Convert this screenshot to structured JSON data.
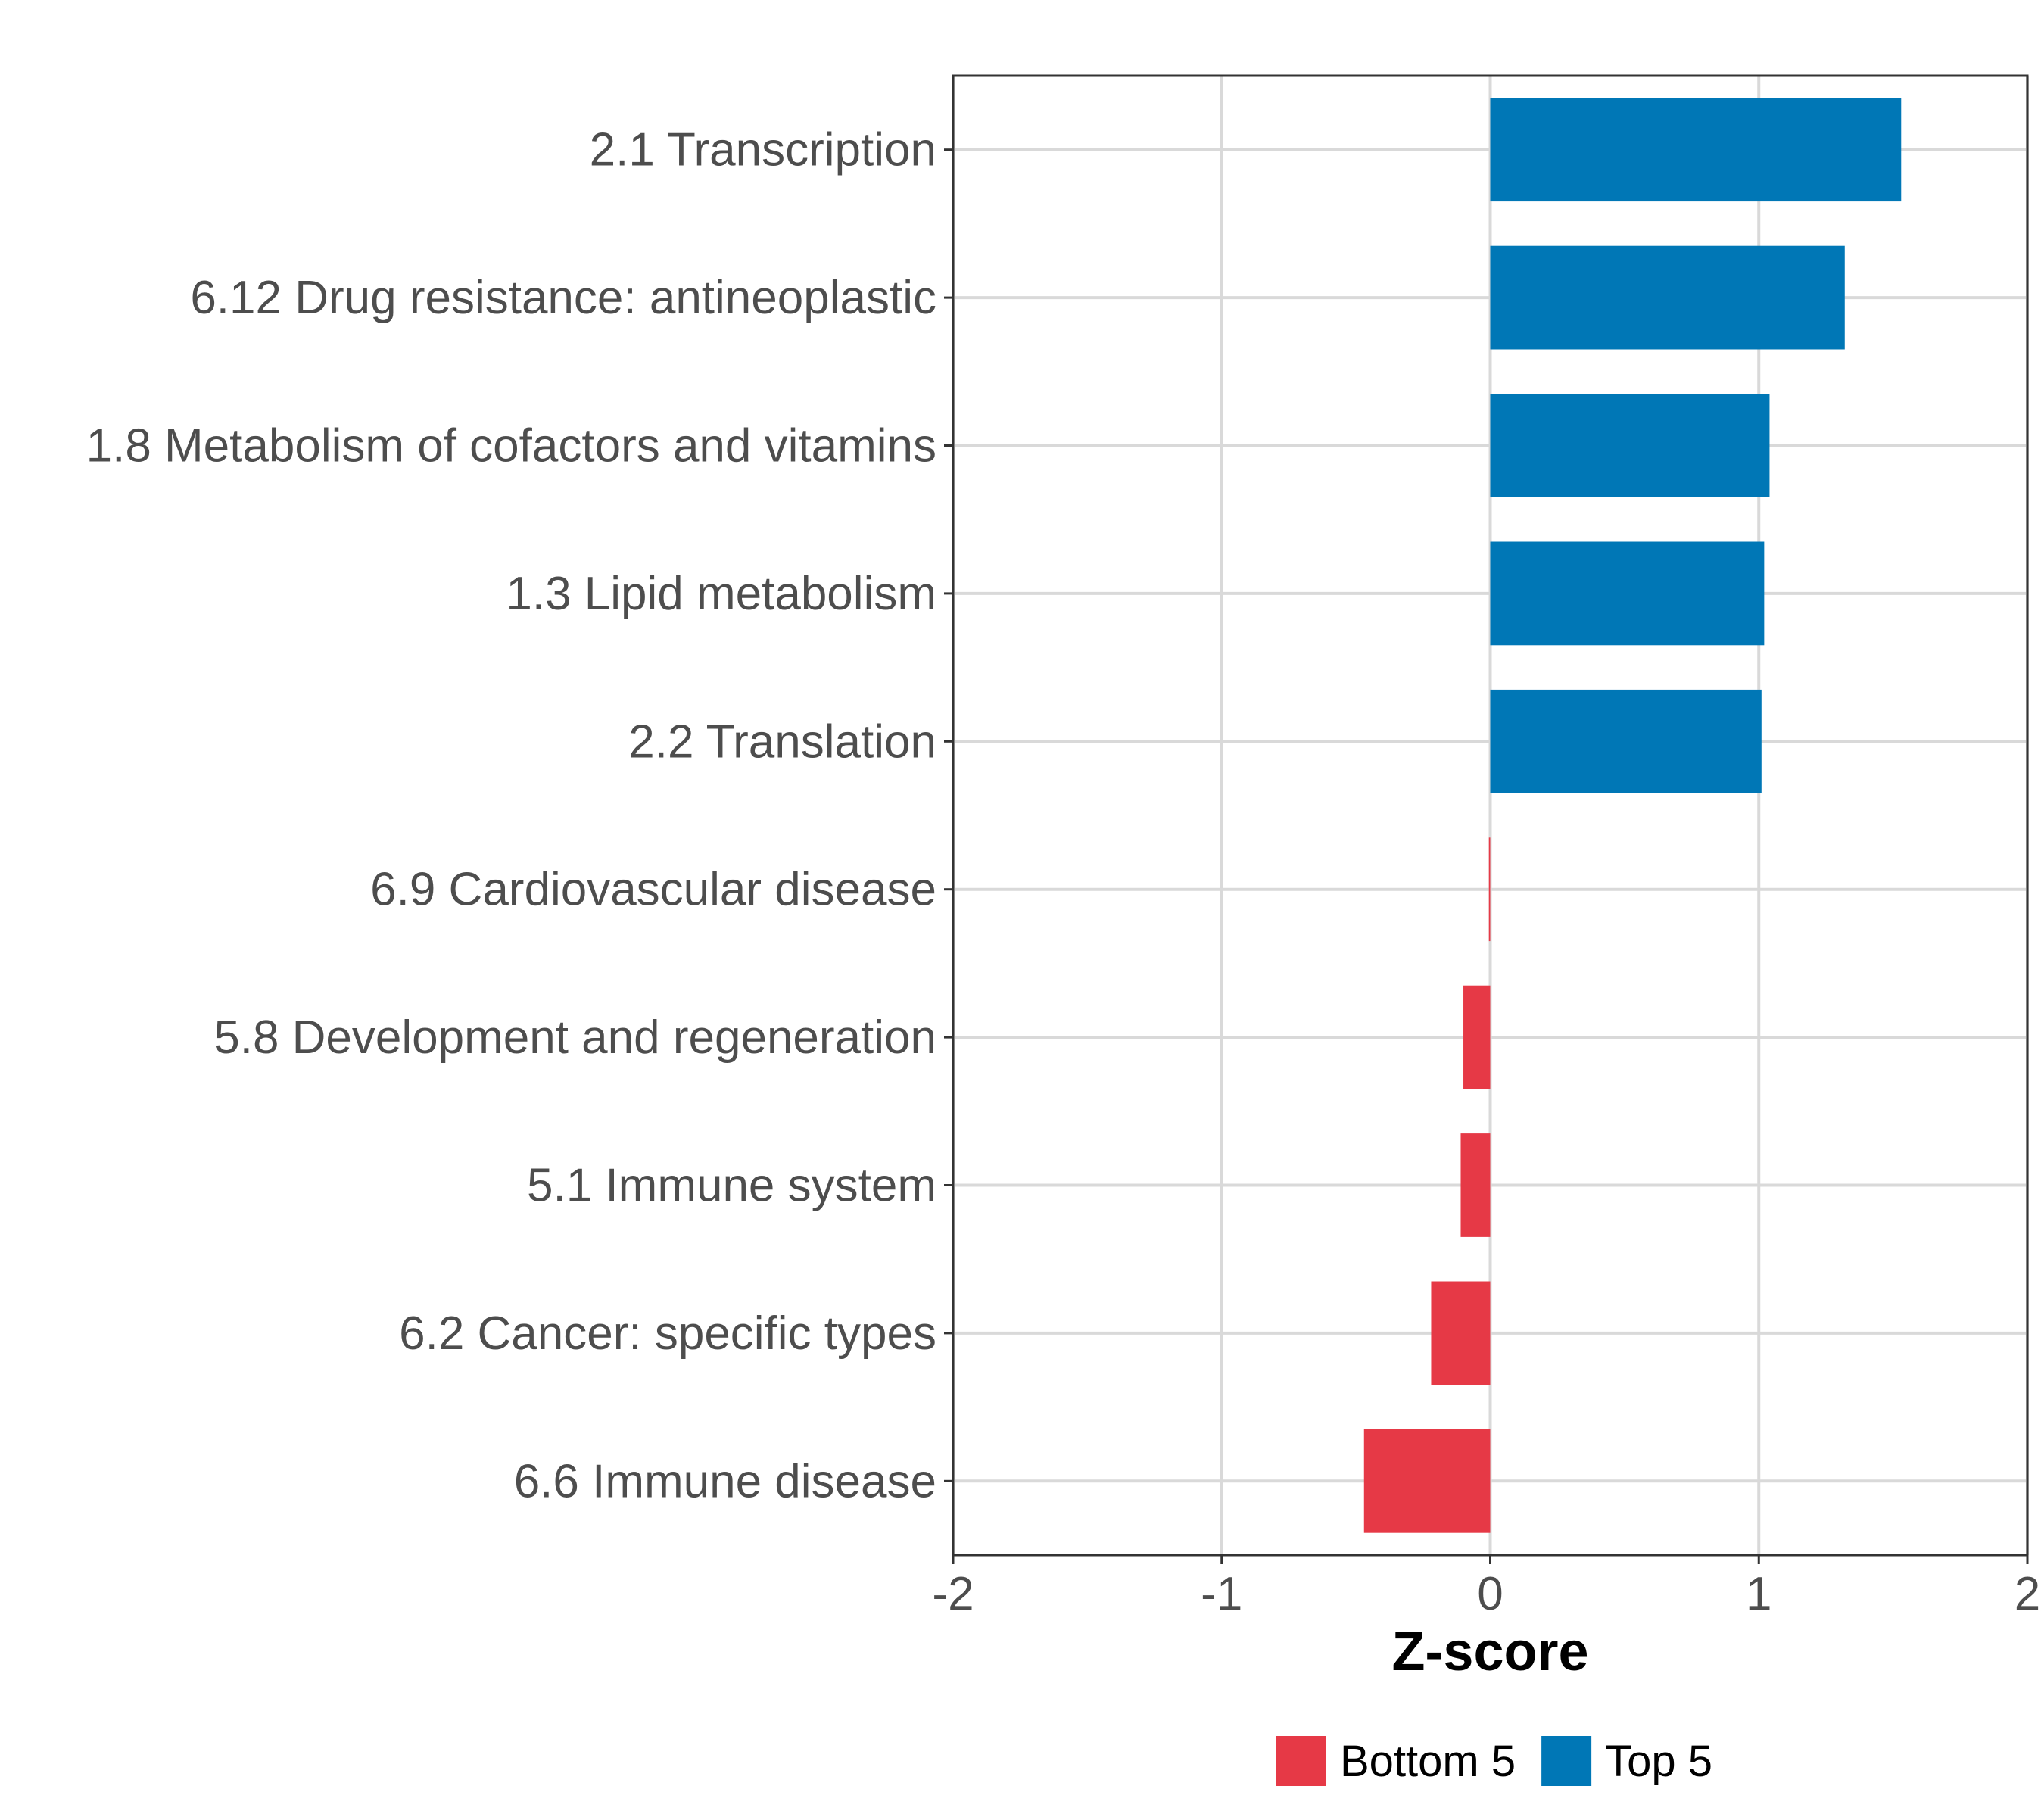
{
  "chart_data": {
    "type": "bar",
    "orientation": "horizontal",
    "categories": [
      "2.1 Transcription",
      "6.12 Drug resistance: antineoplastic",
      "1.8 Metabolism of cofactors and vitamins",
      "1.3 Lipid metabolism",
      "2.2 Translation",
      "6.9 Cardiovascular disease",
      "5.8 Development and regeneration",
      "5.1 Immune system",
      "6.2 Cancer: specific types",
      "6.6 Immune disease"
    ],
    "values": [
      1.53,
      1.32,
      1.04,
      1.02,
      1.01,
      -0.005,
      -0.1,
      -0.11,
      -0.22,
      -0.47
    ],
    "groups": [
      "Top 5",
      "Top 5",
      "Top 5",
      "Top 5",
      "Top 5",
      "Bottom 5",
      "Bottom 5",
      "Bottom 5",
      "Bottom 5",
      "Bottom 5"
    ],
    "xlabel": "Z-score",
    "ylabel": "",
    "xlim": [
      -2,
      2
    ],
    "xticks": [
      -2,
      -1,
      0,
      1,
      2
    ],
    "xtick_labels": [
      "-2",
      "-1",
      "0",
      "1",
      "2"
    ],
    "grid": true,
    "legend": {
      "position": "bottom",
      "entries": [
        {
          "label": "Bottom 5",
          "color": "#e63946"
        },
        {
          "label": "Top 5",
          "color": "#0077b6"
        }
      ]
    }
  }
}
